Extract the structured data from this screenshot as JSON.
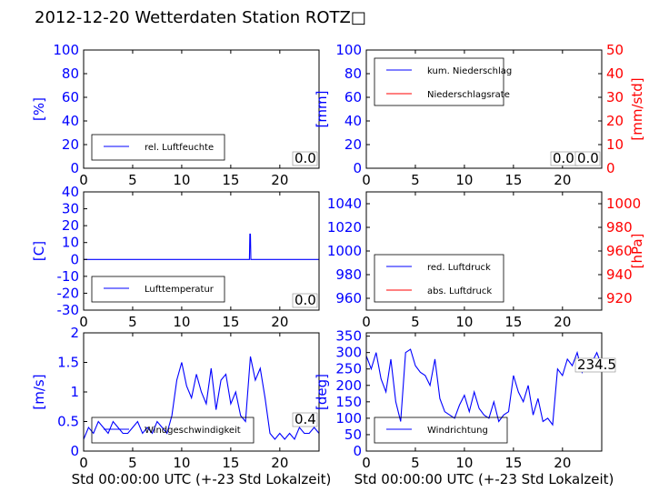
{
  "header": {
    "title": "2012-12-20 Wetterdaten Station ROTZ□"
  },
  "colors": {
    "left_axis": "#0000ff",
    "right_axis": "#ff0000",
    "series_blue": "#0000ff",
    "series_red": "#ff0000",
    "frame": "#000000"
  },
  "chart_data": [
    {
      "id": "humidity",
      "type": "line",
      "ylabel": "[%]",
      "ylim": [
        0,
        100
      ],
      "yticks": [
        0,
        20,
        40,
        60,
        80,
        100
      ],
      "xlim": [
        0,
        24
      ],
      "xticks": [
        0,
        5,
        10,
        15,
        20
      ],
      "xlabel": "",
      "legend": {
        "placement": "lower-left",
        "entries": [
          "rel. Luftfeuchte"
        ]
      },
      "annotation": "0.0",
      "series": [
        {
          "name": "rel. Luftfeuchte",
          "color": "#0000ff",
          "x": [
            0,
            24
          ],
          "y": [
            0,
            0
          ]
        }
      ]
    },
    {
      "id": "precipitation",
      "type": "line",
      "ylabel": "[mm]",
      "ylim": [
        0,
        100
      ],
      "yticks": [
        0,
        20,
        40,
        60,
        80,
        100
      ],
      "y2label": "[mm/std]",
      "y2lim": [
        0,
        50
      ],
      "y2ticks": [
        0,
        10,
        20,
        30,
        40,
        50
      ],
      "xlim": [
        0,
        24
      ],
      "xticks": [
        0,
        5,
        10,
        15,
        20
      ],
      "xlabel": "",
      "legend": {
        "placement": "upper-left",
        "entries": [
          "kum. Niederschlag",
          "Niederschlagsrate"
        ]
      },
      "annotation": "0.0",
      "annotation2": "0.0",
      "series": [
        {
          "name": "kum. Niederschlag",
          "color": "#0000ff",
          "axis": "left",
          "x": [
            0,
            24
          ],
          "y": [
            0,
            0
          ]
        },
        {
          "name": "Niederschlagsrate",
          "color": "#ff0000",
          "axis": "right",
          "x": [
            0,
            24
          ],
          "y": [
            0,
            0
          ]
        }
      ]
    },
    {
      "id": "temperature",
      "type": "line",
      "ylabel": "[C]",
      "ylim": [
        -30,
        40
      ],
      "yticks": [
        -30,
        -20,
        -10,
        0,
        10,
        20,
        30,
        40
      ],
      "xlim": [
        0,
        24
      ],
      "xticks": [
        0,
        5,
        10,
        15,
        20
      ],
      "xlabel": "",
      "legend": {
        "placement": "lower-left",
        "entries": [
          "Lufttemperatur"
        ]
      },
      "annotation": "0.0",
      "series": [
        {
          "name": "Lufttemperatur",
          "color": "#0000ff",
          "x": [
            0,
            16.9,
            16.95,
            17.0,
            17.05,
            24
          ],
          "y": [
            0,
            0,
            15,
            15,
            0,
            0
          ]
        }
      ]
    },
    {
      "id": "pressure",
      "type": "line",
      "ylabel": "",
      "ylim": [
        950,
        1050
      ],
      "yticks": [
        960,
        980,
        1000,
        1020,
        1040
      ],
      "y2label": "[hPa]",
      "y2lim": [
        910,
        1010
      ],
      "y2ticks": [
        920,
        940,
        960,
        980,
        1000
      ],
      "xlim": [
        0,
        24
      ],
      "xticks": [
        0,
        5,
        10,
        15,
        20
      ],
      "xlabel": "",
      "legend": {
        "placement": "lower-left",
        "entries": [
          "red. Luftdruck",
          "abs. Luftdruck"
        ]
      },
      "series": [
        {
          "name": "red. Luftdruck",
          "color": "#0000ff",
          "x": [],
          "y": []
        },
        {
          "name": "abs. Luftdruck",
          "color": "#ff0000",
          "x": [],
          "y": []
        }
      ]
    },
    {
      "id": "wind_speed",
      "type": "line",
      "ylabel": "[m/s]",
      "ylim": [
        0,
        2.0
      ],
      "yticks": [
        0.0,
        0.5,
        1.0,
        1.5,
        2.0
      ],
      "xlim": [
        0,
        24
      ],
      "xticks": [
        0,
        5,
        10,
        15,
        20
      ],
      "xlabel": "Std 00:00:00 UTC (+-23 Std Lokalzeit)",
      "legend": {
        "placement": "lower-left",
        "entries": [
          "Windgeschwindigkeit"
        ]
      },
      "annotation": "0.4",
      "series": [
        {
          "name": "Windgeschwindigkeit",
          "color": "#0000ff",
          "x": [
            0,
            0.5,
            1,
            1.5,
            2,
            2.5,
            3,
            3.5,
            4,
            4.5,
            5,
            5.5,
            6,
            6.5,
            7,
            7.5,
            8,
            8.5,
            9,
            9.5,
            10,
            10.5,
            11,
            11.5,
            12,
            12.5,
            13,
            13.5,
            14,
            14.5,
            15,
            15.5,
            16,
            16.5,
            17,
            17.5,
            18,
            18.5,
            19,
            19.5,
            20,
            20.5,
            21,
            21.5,
            22,
            22.5,
            23,
            23.5,
            24
          ],
          "y": [
            0.2,
            0.4,
            0.3,
            0.5,
            0.4,
            0.3,
            0.5,
            0.4,
            0.3,
            0.3,
            0.4,
            0.5,
            0.3,
            0.4,
            0.3,
            0.5,
            0.4,
            0.3,
            0.6,
            1.2,
            1.5,
            1.1,
            0.9,
            1.3,
            1.0,
            0.8,
            1.4,
            0.7,
            1.2,
            1.3,
            0.8,
            1.0,
            0.6,
            0.5,
            1.6,
            1.2,
            1.4,
            0.9,
            0.3,
            0.2,
            0.3,
            0.2,
            0.3,
            0.2,
            0.4,
            0.3,
            0.3,
            0.4,
            0.3
          ]
        }
      ]
    },
    {
      "id": "wind_direction",
      "type": "line",
      "ylabel": "[deg]",
      "ylim": [
        0,
        360
      ],
      "yticks": [
        0,
        50,
        100,
        150,
        200,
        250,
        300,
        350
      ],
      "xlim": [
        0,
        24
      ],
      "xticks": [
        0,
        5,
        10,
        15,
        20
      ],
      "xlabel": "Std 00:00:00 UTC (+-23 Std Lokalzeit)",
      "legend": {
        "placement": "lower-left",
        "entries": [
          "Windrichtung"
        ]
      },
      "annotation": "234.5",
      "series": [
        {
          "name": "Windrichtung",
          "color": "#0000ff",
          "x": [
            0,
            0.5,
            1,
            1.5,
            2,
            2.5,
            3,
            3.5,
            4,
            4.5,
            5,
            5.5,
            6,
            6.5,
            7,
            7.5,
            8,
            8.5,
            9,
            9.5,
            10,
            10.5,
            11,
            11.5,
            12,
            12.5,
            13,
            13.5,
            14,
            14.5,
            15,
            15.5,
            16,
            16.5,
            17,
            17.5,
            18,
            18.5,
            19,
            19.5,
            20,
            20.5,
            21,
            21.5,
            22,
            22.5,
            23,
            23.5,
            24
          ],
          "y": [
            290,
            250,
            300,
            220,
            180,
            280,
            150,
            90,
            300,
            310,
            260,
            240,
            230,
            200,
            280,
            160,
            120,
            110,
            100,
            140,
            170,
            120,
            180,
            130,
            110,
            100,
            150,
            90,
            110,
            120,
            230,
            180,
            150,
            200,
            110,
            160,
            90,
            100,
            80,
            250,
            230,
            280,
            260,
            300,
            240,
            280,
            270,
            300,
            260
          ]
        }
      ]
    }
  ]
}
